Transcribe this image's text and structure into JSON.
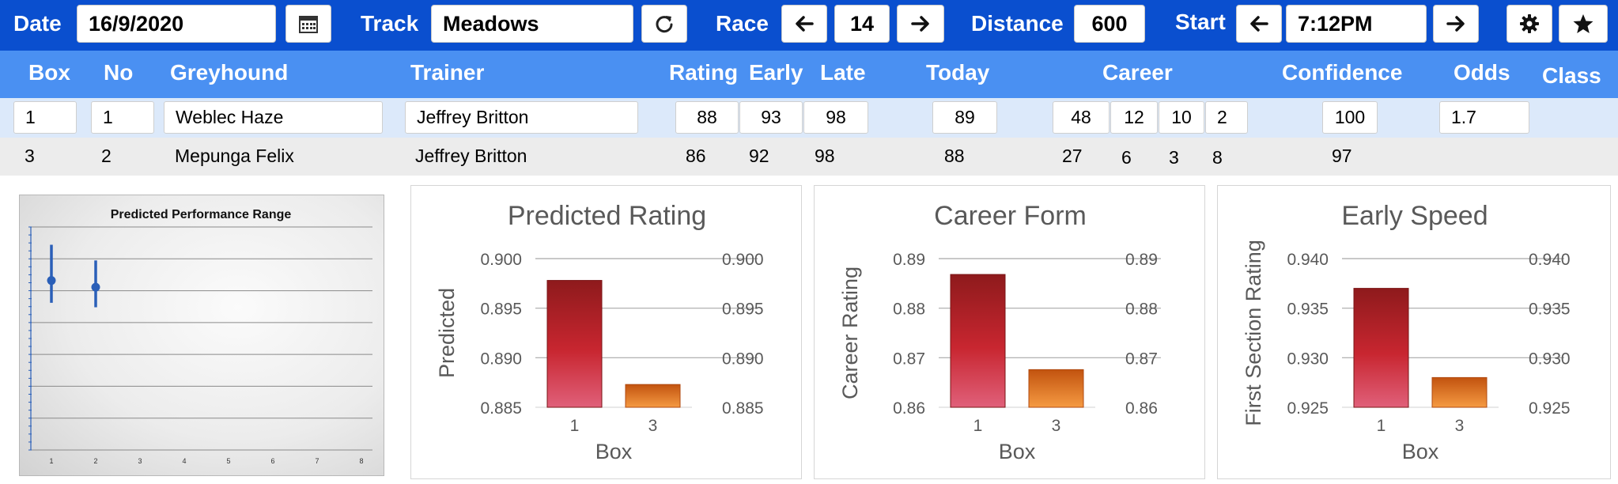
{
  "toolbar": {
    "date_label": "Date",
    "date_value": "16/9/2020",
    "calendar_icon": "calendar-icon",
    "track_label": "Track",
    "track_value": "Meadows",
    "refresh_icon": "refresh-icon",
    "race_label": "Race",
    "race_value": "14",
    "prev_icon": "arrow-left-icon",
    "next_icon": "arrow-right-icon",
    "distance_label": "Distance",
    "distance_value": "600",
    "start_label": "Start",
    "start_value": "7:12PM",
    "settings_icon": "gear-icon",
    "favorite_icon": "star-icon"
  },
  "table": {
    "headers": {
      "box": "Box",
      "no": "No",
      "greyhound": "Greyhound",
      "trainer": "Trainer",
      "rating": "Rating",
      "early": "Early",
      "late": "Late",
      "today": "Today",
      "career": "Career",
      "confidence": "Confidence",
      "odds": "Odds",
      "class": "Class"
    },
    "rows": [
      {
        "box": "1",
        "no": "1",
        "greyhound": "Weblec Haze",
        "trainer": "Jeffrey Britton",
        "rating": "88",
        "early": "93",
        "late": "98",
        "today": "89",
        "career": [
          "48",
          "12",
          "10",
          "2"
        ],
        "confidence": "100",
        "odds": "1.7",
        "class": ""
      },
      {
        "box": "3",
        "no": "2",
        "greyhound": "Mepunga Felix",
        "trainer": "Jeffrey Britton",
        "rating": "86",
        "early": "92",
        "late": "98",
        "today": "88",
        "career": [
          "27",
          "6",
          "3",
          "8"
        ],
        "confidence": "97",
        "odds": "",
        "class": ""
      }
    ]
  },
  "chart_data": [
    {
      "type": "scatter",
      "title": "Predicted Performance Range",
      "x_ticks": [
        "1",
        "2",
        "3",
        "4",
        "5",
        "6",
        "7",
        "8"
      ],
      "points": [
        {
          "x": 1,
          "y": 0.76,
          "low": 0.66,
          "high": 0.92
        },
        {
          "x": 2,
          "y": 0.73,
          "low": 0.64,
          "high": 0.85
        }
      ],
      "ylim": [
        0,
        1.0
      ],
      "grid": true
    },
    {
      "type": "bar",
      "title": "Predicted Rating",
      "xlabel": "Box",
      "ylabel": "Predicted",
      "categories": [
        "1",
        "3"
      ],
      "values": [
        0.8978,
        0.8873
      ],
      "ylim": [
        0.885,
        0.9
      ],
      "ticks": [
        "0.900",
        "0.895",
        "0.890",
        "0.885"
      ],
      "grid": true
    },
    {
      "type": "bar",
      "title": "Career Form",
      "xlabel": "Box",
      "ylabel": "Career Rating",
      "categories": [
        "1",
        "3"
      ],
      "values": [
        0.8868,
        0.8676
      ],
      "ylim": [
        0.86,
        0.89
      ],
      "ticks": [
        "0.89",
        "0.88",
        "0.87",
        "0.86"
      ],
      "grid": true
    },
    {
      "type": "bar",
      "title": "Early Speed",
      "xlabel": "Box",
      "ylabel": "First Section Rating",
      "categories": [
        "1",
        "3"
      ],
      "values": [
        0.937,
        0.928
      ],
      "ylim": [
        0.925,
        0.94
      ],
      "ticks": [
        "0.940",
        "0.935",
        "0.930",
        "0.925"
      ],
      "grid": true
    }
  ],
  "colors": {
    "toolbar_bg": "#0a4fcf",
    "header_bg": "#4a90f2",
    "row_selected_bg": "#dce9fa",
    "row_bg": "#ececec",
    "bar_primary_top": "#8e1a1c",
    "bar_primary_bottom": "#e0607a",
    "bar_secondary_top": "#c2530f",
    "bar_secondary_bottom": "#f59a42",
    "errorbar": "#2a5fb8"
  }
}
